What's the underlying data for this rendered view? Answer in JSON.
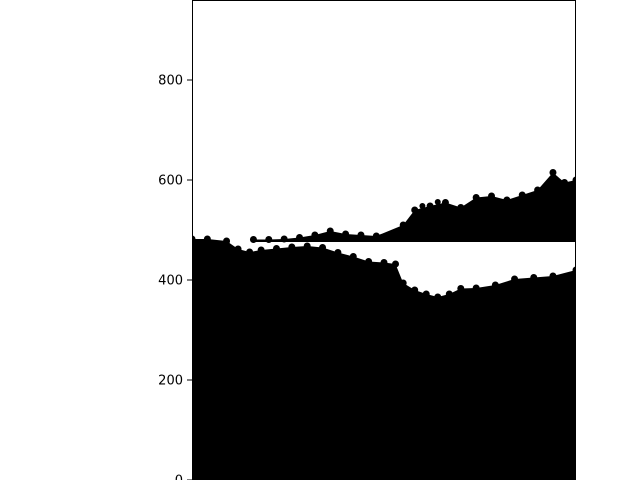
{
  "chart_data": {
    "type": "scatter",
    "title": "",
    "xlabel": "",
    "ylabel": "",
    "ylim": [
      0,
      960
    ],
    "y_ticks": [
      0,
      200,
      400,
      600,
      800
    ],
    "y_tick_labels": [
      "0",
      "200",
      "400",
      "600",
      "800"
    ],
    "x_ticks": [],
    "grid": false,
    "legend": "none",
    "colors": {
      "marker": "#000000",
      "background": "#ffffff",
      "axes": "#000000"
    },
    "series": [
      {
        "values_note_free": true,
        "points": [
          {
            "x": 0.0,
            "y": 482
          },
          {
            "x": 0.04,
            "y": 482
          },
          {
            "x": 0.09,
            "y": 478
          },
          {
            "x": 0.12,
            "y": 462
          },
          {
            "x": 0.15,
            "y": 456
          },
          {
            "x": 0.18,
            "y": 460
          },
          {
            "x": 0.22,
            "y": 463
          },
          {
            "x": 0.26,
            "y": 466
          },
          {
            "x": 0.3,
            "y": 468
          },
          {
            "x": 0.34,
            "y": 465
          },
          {
            "x": 0.38,
            "y": 455
          },
          {
            "x": 0.42,
            "y": 447
          },
          {
            "x": 0.46,
            "y": 437
          },
          {
            "x": 0.5,
            "y": 435
          },
          {
            "x": 0.53,
            "y": 432
          },
          {
            "x": 0.55,
            "y": 394
          },
          {
            "x": 0.58,
            "y": 380
          },
          {
            "x": 0.61,
            "y": 372
          },
          {
            "x": 0.64,
            "y": 366
          },
          {
            "x": 0.67,
            "y": 372
          },
          {
            "x": 0.7,
            "y": 383
          },
          {
            "x": 0.74,
            "y": 384
          },
          {
            "x": 0.79,
            "y": 390
          },
          {
            "x": 0.84,
            "y": 402
          },
          {
            "x": 0.89,
            "y": 405
          },
          {
            "x": 0.94,
            "y": 408
          },
          {
            "x": 1.0,
            "y": 420
          }
        ],
        "upper_points": [
          {
            "x": 0.16,
            "y": 481
          },
          {
            "x": 0.2,
            "y": 481
          },
          {
            "x": 0.24,
            "y": 482
          },
          {
            "x": 0.28,
            "y": 485
          },
          {
            "x": 0.32,
            "y": 490
          },
          {
            "x": 0.36,
            "y": 498
          },
          {
            "x": 0.4,
            "y": 492
          },
          {
            "x": 0.44,
            "y": 490
          },
          {
            "x": 0.48,
            "y": 488
          },
          {
            "x": 0.55,
            "y": 510
          },
          {
            "x": 0.58,
            "y": 540
          },
          {
            "x": 0.62,
            "y": 548
          },
          {
            "x": 0.66,
            "y": 555
          },
          {
            "x": 0.7,
            "y": 545
          },
          {
            "x": 0.74,
            "y": 565
          },
          {
            "x": 0.78,
            "y": 568
          },
          {
            "x": 0.82,
            "y": 560
          },
          {
            "x": 0.86,
            "y": 570
          },
          {
            "x": 0.9,
            "y": 580
          },
          {
            "x": 0.94,
            "y": 615
          },
          {
            "x": 0.97,
            "y": 595
          },
          {
            "x": 1.0,
            "y": 600
          }
        ]
      }
    ]
  }
}
